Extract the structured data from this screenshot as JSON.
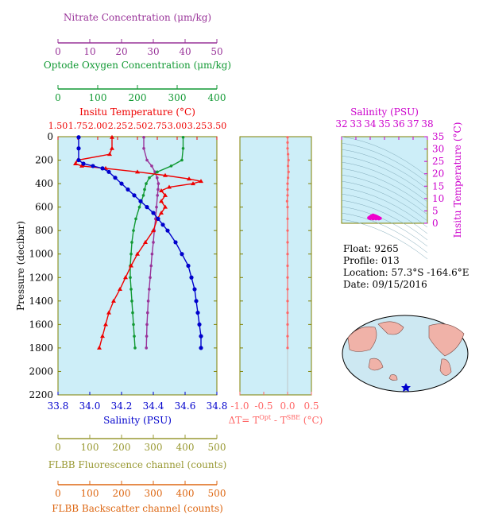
{
  "info": {
    "float": "Float:  9265",
    "profile": "Profile:  013",
    "location": "Location:  57.3°S  -164.6°E",
    "date": "Date:  09/15/2016"
  },
  "colors": {
    "plot_bg": "#cdeef8",
    "salinity": "#0000cc",
    "temperature": "#ee0000",
    "oxygen": "#119933",
    "nitrate": "#993399",
    "fluorescence": "#999933",
    "backscatter": "#dd6611",
    "dt": "#ff6666",
    "ts_axis": "#cc00cc",
    "frame": "#808000"
  },
  "chart_data": [
    {
      "type": "line",
      "name": "main_profile",
      "ylabel": "Pressure (decibar)",
      "yticks": [
        "0",
        "200",
        "400",
        "600",
        "800",
        "1000",
        "1200",
        "1400",
        "1600",
        "1800",
        "2000",
        "2200"
      ],
      "ylim": [
        0,
        2200
      ],
      "axes": {
        "salinity": {
          "title": "Salinity (PSU)",
          "lim": [
            33.8,
            34.8
          ],
          "ticks": [
            "33.8",
            "34.0",
            "34.2",
            "34.4",
            "34.6",
            "34.8"
          ]
        },
        "temperature": {
          "title": "Insitu Temperature (°C)",
          "lim": [
            1.5,
            3.5
          ],
          "ticks": [
            "1.50",
            "1.75",
            "2.00",
            "2.25",
            "2.50",
            "2.75",
            "3.00",
            "3.25",
            "3.50"
          ]
        },
        "oxygen": {
          "title": "Optode Oxygen Concentration (μm/kg)",
          "lim": [
            0,
            400
          ],
          "ticks": [
            "0",
            "100",
            "200",
            "300",
            "400"
          ]
        },
        "nitrate": {
          "title": "Nitrate Concentration (μm/kg)",
          "lim": [
            0,
            50
          ],
          "ticks": [
            "0",
            "10",
            "20",
            "30",
            "40",
            "50"
          ]
        },
        "fluorescence": {
          "title": "FLBB Fluorescence channel (counts)",
          "lim": [
            0,
            500
          ],
          "ticks": [
            "0",
            "100",
            "200",
            "300",
            "400",
            "500"
          ]
        },
        "backscatter": {
          "title": "FLBB Backscatter channel (counts)",
          "lim": [
            0,
            500
          ],
          "ticks": [
            "0",
            "100",
            "200",
            "300",
            "400",
            "500"
          ]
        }
      },
      "series": {
        "salinity": {
          "p": [
            5,
            100,
            200,
            230,
            250,
            270,
            300,
            350,
            400,
            450,
            500,
            550,
            600,
            650,
            700,
            750,
            800,
            900,
            1000,
            1100,
            1200,
            1300,
            1400,
            1500,
            1600,
            1700,
            1800
          ],
          "v": [
            33.93,
            33.93,
            33.93,
            33.96,
            34.02,
            34.08,
            34.12,
            34.16,
            34.2,
            34.24,
            34.28,
            34.32,
            34.36,
            34.4,
            34.43,
            34.46,
            34.49,
            34.54,
            34.58,
            34.62,
            34.64,
            34.66,
            34.67,
            34.68,
            34.69,
            34.7,
            34.7
          ]
        },
        "temperature": {
          "p": [
            5,
            100,
            150,
            200,
            230,
            250,
            270,
            300,
            330,
            360,
            380,
            400,
            430,
            460,
            500,
            550,
            600,
            650,
            700,
            800,
            900,
            1000,
            1100,
            1200,
            1300,
            1400,
            1500,
            1600,
            1700,
            1800
          ],
          "v": [
            2.18,
            2.18,
            2.15,
            1.75,
            1.72,
            1.8,
            2.1,
            2.5,
            2.85,
            3.15,
            3.3,
            3.2,
            2.9,
            2.8,
            2.85,
            2.8,
            2.85,
            2.8,
            2.75,
            2.7,
            2.6,
            2.5,
            2.42,
            2.35,
            2.28,
            2.2,
            2.14,
            2.1,
            2.06,
            2.02
          ]
        },
        "oxygen": {
          "p": [
            5,
            100,
            200,
            250,
            300,
            350,
            400,
            450,
            500,
            600,
            700,
            800,
            900,
            1000,
            1100,
            1200,
            1300,
            1400,
            1500,
            1600,
            1700,
            1800
          ],
          "v": [
            315,
            315,
            312,
            285,
            250,
            230,
            222,
            218,
            215,
            205,
            196,
            190,
            186,
            184,
            182,
            182,
            184,
            186,
            188,
            190,
            192,
            194
          ]
        },
        "nitrate": {
          "p": [
            5,
            100,
            200,
            250,
            300,
            350,
            400,
            450,
            500,
            600,
            700,
            800,
            900,
            1000,
            1100,
            1200,
            1300,
            1400,
            1500,
            1600,
            1700,
            1800
          ],
          "v": [
            27,
            27,
            28,
            29.5,
            30.5,
            31.2,
            31.6,
            31.5,
            31.3,
            31.0,
            30.7,
            30.3,
            30.0,
            29.6,
            29.3,
            29.0,
            28.7,
            28.4,
            28.2,
            28.0,
            27.9,
            27.8
          ]
        }
      }
    },
    {
      "type": "line",
      "name": "delta_t",
      "xlabel": "ΔT= T^Opt - T^SBE (°C)",
      "xlim": [
        -1.0,
        0.5
      ],
      "xticks": [
        "-1.0",
        "-0.5",
        "0.0",
        "0.5"
      ],
      "series": [
        {
          "p": [
            5,
            50,
            100,
            150,
            200,
            250,
            300,
            350,
            400,
            450,
            500,
            550,
            600,
            700,
            800,
            900,
            1000,
            1100,
            1200,
            1300,
            1400,
            1500,
            1600,
            1700,
            1800
          ],
          "v": [
            0,
            0,
            0,
            0.01,
            0.02,
            0.01,
            0.02,
            0.01,
            0,
            0,
            0,
            -0.01,
            0,
            0,
            0,
            0,
            0,
            0,
            0,
            0,
            0,
            0,
            0,
            0,
            0
          ]
        }
      ]
    },
    {
      "type": "scatter",
      "name": "ts_diagram",
      "title": "Salinity (PSU)",
      "xlim": [
        32,
        38
      ],
      "xticks": [
        "32",
        "33",
        "34",
        "35",
        "36",
        "37",
        "38"
      ],
      "ylabel": "Insitu Temperature (°C)",
      "ylim": [
        0,
        35
      ],
      "yticks": [
        "0",
        "5",
        "10",
        "15",
        "20",
        "25",
        "30",
        "35"
      ],
      "points": {
        "s": [
          33.9,
          34.0,
          34.1,
          34.2,
          34.3,
          34.4,
          34.5,
          34.6,
          34.7,
          34.6,
          34.4,
          34.2,
          34.0
        ],
        "t": [
          2.2,
          2.6,
          3.0,
          3.3,
          3.1,
          2.9,
          2.6,
          2.3,
          2.0,
          1.8,
          1.8,
          1.8,
          1.9
        ]
      }
    }
  ],
  "map": {
    "float_marker": "float location marker"
  }
}
